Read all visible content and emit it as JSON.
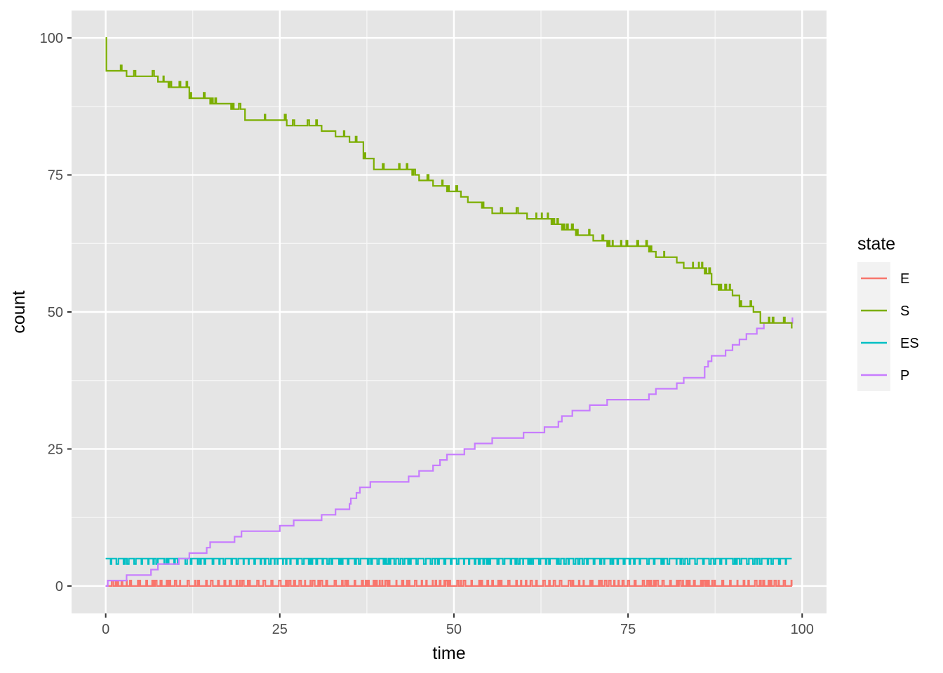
{
  "chart_data": {
    "type": "line",
    "step": true,
    "xlabel": "time",
    "ylabel": "count",
    "xlim": [
      -4.9,
      103.5
    ],
    "ylim": [
      -5,
      105
    ],
    "xticks": [
      0,
      25,
      50,
      75,
      100
    ],
    "yticks": [
      0,
      25,
      50,
      75,
      100
    ],
    "grid": true,
    "background": "#e5e5e5",
    "legend": {
      "title": "state",
      "position": "right"
    },
    "series": [
      {
        "name": "E",
        "color": "#F8766D",
        "kind": "noise",
        "base": 0,
        "alt": 1,
        "x_end": 98.5
      },
      {
        "name": "S",
        "color": "#7CAE00",
        "kind": "step",
        "points": [
          [
            0,
            100
          ],
          [
            0.1,
            94
          ],
          [
            3,
            93
          ],
          [
            7.5,
            92
          ],
          [
            9,
            91
          ],
          [
            12,
            89
          ],
          [
            15,
            88
          ],
          [
            18,
            87
          ],
          [
            20,
            85
          ],
          [
            25,
            85
          ],
          [
            26,
            84
          ],
          [
            30,
            84
          ],
          [
            31,
            83
          ],
          [
            33,
            82
          ],
          [
            35,
            81
          ],
          [
            37,
            78
          ],
          [
            38.5,
            76
          ],
          [
            43,
            76
          ],
          [
            44,
            75
          ],
          [
            45,
            74
          ],
          [
            47,
            73
          ],
          [
            49,
            72
          ],
          [
            51,
            71
          ],
          [
            52,
            70
          ],
          [
            54,
            69
          ],
          [
            55.5,
            68
          ],
          [
            60,
            68
          ],
          [
            60.5,
            67
          ],
          [
            64,
            66
          ],
          [
            65.5,
            65
          ],
          [
            67.5,
            64
          ],
          [
            70,
            63
          ],
          [
            72,
            62
          ],
          [
            78,
            61
          ],
          [
            79,
            60
          ],
          [
            82,
            59
          ],
          [
            83,
            58
          ],
          [
            86,
            57
          ],
          [
            87,
            55
          ],
          [
            88,
            54
          ],
          [
            90,
            53
          ],
          [
            91,
            51
          ],
          [
            93,
            50
          ],
          [
            94,
            48
          ],
          [
            95,
            48
          ],
          [
            98.5,
            47
          ]
        ],
        "jitter": 1
      },
      {
        "name": "ES",
        "color": "#00BFC4",
        "kind": "noise",
        "base": 5,
        "alt": 4,
        "x_end": 98.5
      },
      {
        "name": "P",
        "color": "#C77CFF",
        "kind": "step",
        "points": [
          [
            0,
            0
          ],
          [
            0.3,
            1
          ],
          [
            3,
            2
          ],
          [
            6.5,
            3
          ],
          [
            7.5,
            4
          ],
          [
            10.5,
            5
          ],
          [
            12,
            6
          ],
          [
            14.5,
            7
          ],
          [
            15,
            8
          ],
          [
            18.5,
            9
          ],
          [
            19.5,
            10
          ],
          [
            25,
            11
          ],
          [
            27,
            12
          ],
          [
            31,
            13
          ],
          [
            33,
            14
          ],
          [
            35,
            15
          ],
          [
            35.2,
            16
          ],
          [
            36,
            17
          ],
          [
            36.5,
            18
          ],
          [
            38,
            19
          ],
          [
            43.5,
            20
          ],
          [
            45,
            21
          ],
          [
            47,
            22
          ],
          [
            48,
            23
          ],
          [
            49,
            24
          ],
          [
            51.5,
            25
          ],
          [
            53,
            26
          ],
          [
            55.5,
            27
          ],
          [
            60,
            28
          ],
          [
            63,
            29
          ],
          [
            65,
            30
          ],
          [
            65.5,
            31
          ],
          [
            67,
            32
          ],
          [
            69.5,
            33
          ],
          [
            72,
            34
          ],
          [
            78,
            35
          ],
          [
            79,
            36
          ],
          [
            82,
            37
          ],
          [
            83,
            38
          ],
          [
            86,
            40
          ],
          [
            86.5,
            41
          ],
          [
            87,
            42
          ],
          [
            89,
            43
          ],
          [
            90,
            44
          ],
          [
            91,
            45
          ],
          [
            92,
            46
          ],
          [
            93.5,
            47
          ],
          [
            94.5,
            48
          ],
          [
            98.5,
            48
          ],
          [
            98.6,
            49
          ]
        ]
      }
    ]
  }
}
